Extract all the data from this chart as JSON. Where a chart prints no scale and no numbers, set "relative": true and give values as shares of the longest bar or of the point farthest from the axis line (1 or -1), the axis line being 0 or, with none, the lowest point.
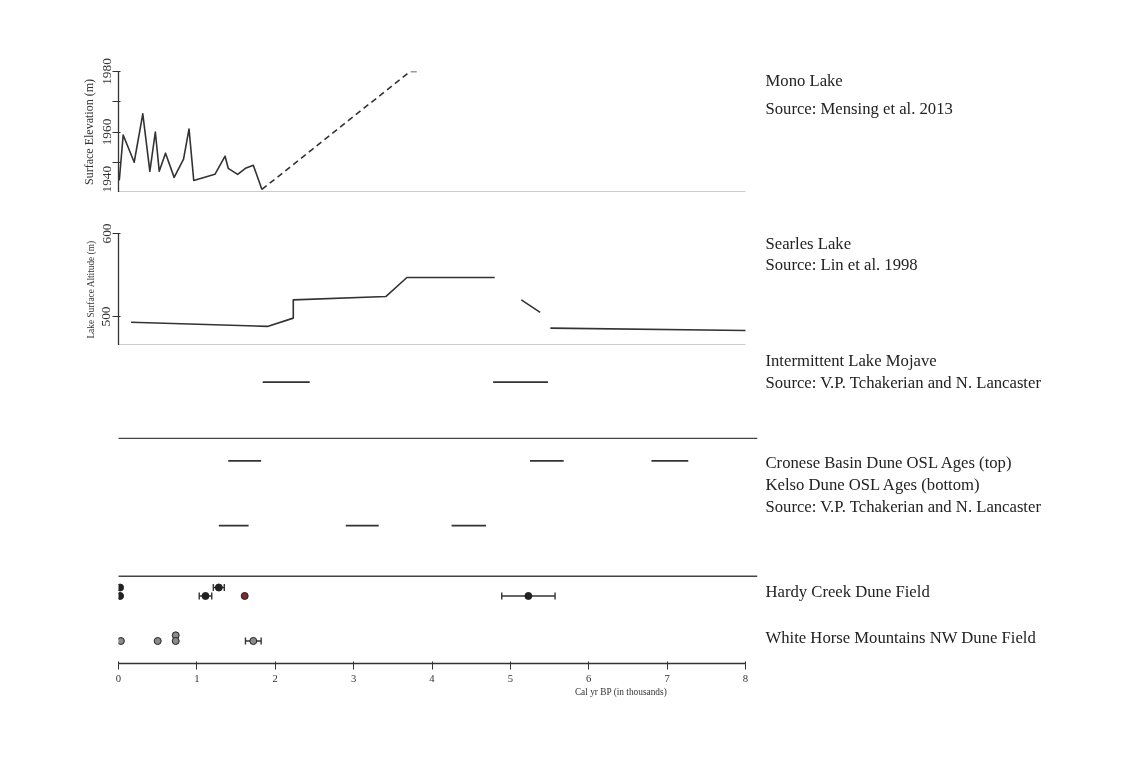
{
  "chart_data": [
    {
      "type": "line",
      "annotations": [
        "Mono Lake",
        "Source: Mensing et al. 2013"
      ],
      "ylabel": "Surface Elevation (m)",
      "xlim": [
        0,
        8
      ],
      "ylim": [
        1940,
        1980
      ],
      "yticks": [
        1940,
        {
          "value": 1950,
          "label": null
        },
        1960,
        {
          "value": 1970,
          "label": null
        },
        1980
      ],
      "tick_labels": "y",
      "series": [
        {
          "color": "#333333",
          "line_style": "solid",
          "x": [
            0.01,
            0.06,
            0.2,
            0.31,
            0.4,
            0.47,
            0.52,
            0.6,
            0.71,
            0.83,
            0.9,
            0.96,
            1.23,
            1.36,
            1.4,
            1.52,
            1.62,
            1.72,
            1.83
          ],
          "values": [
            1944,
            1959,
            1950,
            1966,
            1947,
            1960,
            1947,
            1953,
            1945,
            1951,
            1961,
            1944,
            1946,
            1952,
            1948,
            1946,
            1948,
            1949,
            1941
          ]
        },
        {
          "color": "#333333",
          "line_style": "dashed",
          "x": [
            1.83,
            3.72,
            3.83
          ],
          "values": [
            1941,
            1980,
            1980
          ]
        }
      ]
    },
    {
      "type": "line",
      "annotations": [
        "Searles Lake",
        "Source: Lin et al. 1998"
      ],
      "ylabel": "Lake Surface Altitude (m)",
      "xlim": [
        0,
        8
      ],
      "ylim": [
        465,
        600
      ],
      "yticks": [
        500,
        600
      ],
      "tick_labels": "y",
      "series": [
        {
          "color": "#333333",
          "x": [
            0.16,
            1.9,
            2.23,
            2.23,
            3.41,
            3.68,
            4.8,
            4.9,
            5.14,
            5.38,
            5.45,
            5.51,
            8.0
          ],
          "values": [
            493,
            488,
            498,
            520,
            524,
            547,
            547,
            null,
            520,
            505,
            null,
            486,
            483
          ]
        }
      ]
    },
    {
      "type": "scatter",
      "xlabel": "Cal yr BP (in thousands)",
      "relative": true,
      "xlim": [
        0,
        8
      ],
      "xticks": [
        0,
        1,
        2,
        3,
        4,
        5,
        6,
        7,
        8
      ],
      "tick_labels": "x",
      "annotations": [
        "Source: V.P. Tchakerian and N. Lancaster",
        "Source: V.P. Tchakerian and N. Lancaster"
      ],
      "ref_lines": [
        {
          "axis": "y",
          "value": 0.8
        },
        {
          "axis": "y",
          "value": 0.31
        }
      ],
      "series": [
        {
          "name": "Intermittent Lake Mojave",
          "type": "line",
          "color": "#333333",
          "x": [
            1.84,
            2.44,
            3.5,
            4.78,
            5.48
          ],
          "values": [
            1.0,
            1.0,
            null,
            1.0,
            1.0
          ]
        },
        {
          "name": "Cronese Basin Dune OSL Ages (top)",
          "type": "line",
          "color": "#333333",
          "x": [
            1.4,
            1.82,
            3.5,
            5.25,
            5.68,
            6.2,
            6.8,
            7.27
          ],
          "values": [
            0.72,
            0.72,
            null,
            0.72,
            0.72,
            null,
            0.72,
            0.72
          ]
        },
        {
          "name": "Kelso Dune OSL Ages (bottom)",
          "type": "line",
          "color": "#333333",
          "x": [
            1.28,
            1.66,
            2.3,
            2.9,
            3.32,
            3.8,
            4.25,
            4.69
          ],
          "values": [
            0.49,
            0.49,
            null,
            0.49,
            0.49,
            null,
            0.49,
            0.49
          ]
        },
        {
          "name": "Hardy Creek Dune Field",
          "marker": "circle",
          "color": "#222222",
          "colors": [
            "#222222",
            "#222222",
            "#222222",
            "#222222",
            "#7a2a2a",
            "#222222"
          ],
          "x": [
            0.02,
            0.02,
            1.11,
            1.28,
            1.61,
            5.23
          ],
          "values": [
            0.27,
            0.24,
            0.24,
            0.27,
            0.24,
            0.24
          ],
          "xerrors": [
            null,
            null,
            0.08,
            0.07,
            null,
            0.34
          ]
        },
        {
          "name": "White Horse Mountains NW Dune Field",
          "marker": "circle",
          "color": "#8a8a8a",
          "x": [
            0.03,
            0.5,
            0.73,
            0.73,
            1.72
          ],
          "values": [
            0.08,
            0.08,
            0.1,
            0.08,
            0.08
          ],
          "xerrors": [
            null,
            null,
            null,
            null,
            0.1
          ]
        }
      ]
    }
  ]
}
